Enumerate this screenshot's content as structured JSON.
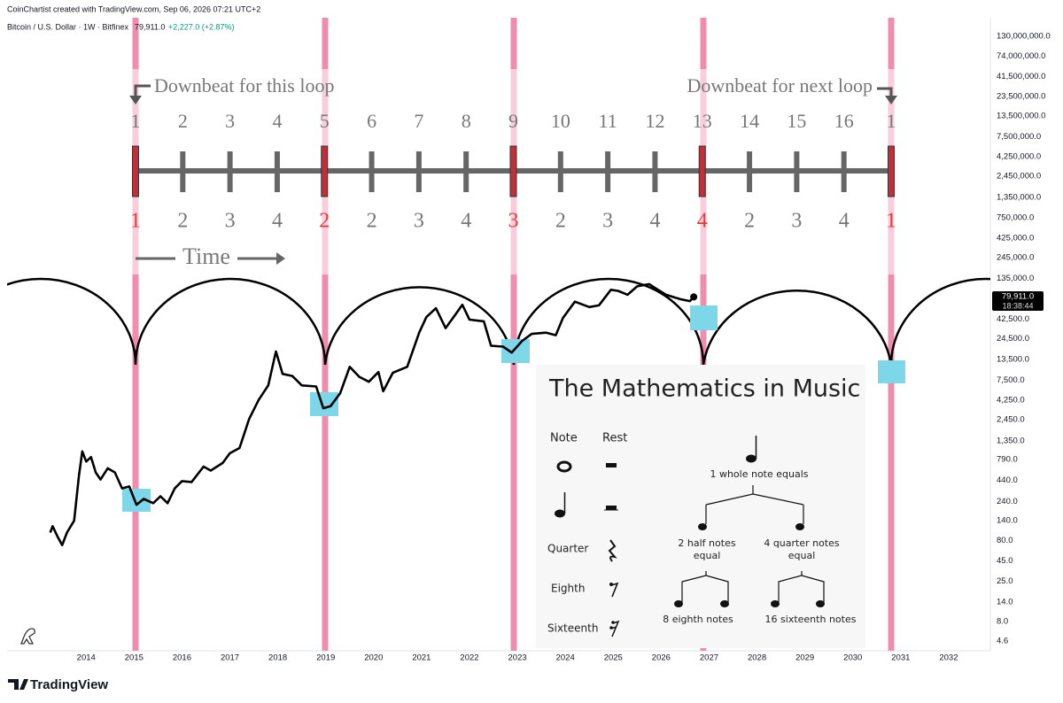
{
  "header": {
    "created": "CoinChartist created with TradingView.com, Sep 06, 2026 07:21 UTC+2",
    "symbol": "Bitcoin / U.S. Dollar · 1W · Bitfinex",
    "last": "79,911.0",
    "change": "+2,227.0 (+2.87%)"
  },
  "price_tag": {
    "price": "79,911.0",
    "countdown": "18:38:44"
  },
  "footer": {
    "brand": "TradingView"
  },
  "diagram": {
    "downbeat_this": "Downbeat for this loop",
    "downbeat_next": "Downbeat for next loop",
    "time": "Time",
    "beats": [
      "1",
      "2",
      "3",
      "4",
      "5",
      "6",
      "7",
      "8",
      "9",
      "10",
      "11",
      "12",
      "13",
      "14",
      "15",
      "16",
      "1"
    ],
    "counts": [
      "1",
      "2",
      "3",
      "4",
      "2",
      "2",
      "3",
      "4",
      "3",
      "2",
      "3",
      "4",
      "4",
      "2",
      "3",
      "4",
      "1"
    ]
  },
  "music": {
    "title": "The Mathematics in Music",
    "note_header": "Note",
    "rest_header": "Rest",
    "rows": [
      "Quarter",
      "Eighth",
      "Sixteenth"
    ],
    "whole": "1 whole note equals",
    "half": "2 half notes",
    "half_equal": "equal",
    "quarter": "4 quarter notes",
    "quarter_equal": "equal",
    "eighth": "8 eighth notes",
    "sixteenth": "16 sixteenth notes"
  },
  "chart_data": {
    "type": "line",
    "log_scale": true,
    "grid": false,
    "color": "#000000",
    "x": [
      2013.25,
      2013.3,
      2013.4,
      2013.5,
      2013.6,
      2013.75,
      2013.85,
      2013.92,
      2014.0,
      2014.1,
      2014.2,
      2014.3,
      2014.45,
      2014.6,
      2014.75,
      2014.9,
      2015.05,
      2015.2,
      2015.4,
      2015.55,
      2015.7,
      2015.85,
      2016.0,
      2016.2,
      2016.45,
      2016.6,
      2016.85,
      2017.0,
      2017.2,
      2017.4,
      2017.6,
      2017.8,
      2017.96,
      2018.1,
      2018.3,
      2018.5,
      2018.8,
      2018.95,
      2019.1,
      2019.3,
      2019.5,
      2019.7,
      2019.9,
      2020.1,
      2020.2,
      2020.4,
      2020.7,
      2020.95,
      2021.1,
      2021.3,
      2021.5,
      2021.7,
      2021.85,
      2022.0,
      2022.3,
      2022.45,
      2022.7,
      2022.88,
      2023.1,
      2023.3,
      2023.6,
      2023.8,
      2023.95,
      2024.2,
      2024.5,
      2024.7,
      2024.95,
      2025.1,
      2025.3,
      2025.5,
      2025.75,
      2025.85,
      2026.1,
      2026.4,
      2026.6,
      2026.68
    ],
    "values": [
      100,
      120,
      90,
      70,
      100,
      140,
      500,
      1000,
      750,
      850,
      550,
      450,
      620,
      550,
      350,
      370,
      220,
      260,
      230,
      280,
      230,
      350,
      430,
      420,
      650,
      580,
      720,
      950,
      1100,
      2500,
      4300,
      6500,
      17000,
      9000,
      8500,
      6500,
      6300,
      3400,
      3600,
      5200,
      11000,
      8300,
      7200,
      9500,
      5500,
      9300,
      11000,
      29000,
      45000,
      58000,
      33000,
      48000,
      64000,
      42000,
      40000,
      20000,
      19500,
      16500,
      23000,
      28000,
      29000,
      27000,
      44000,
      70000,
      60000,
      63000,
      98000,
      95000,
      85000,
      108000,
      115000,
      105000,
      85000,
      75000,
      71000,
      79911
    ],
    "xlim": [
      2012.35,
      2032.87
    ],
    "xticks": [
      2014,
      2015,
      2016,
      2017,
      2018,
      2019,
      2020,
      2021,
      2022,
      2023,
      2024,
      2025,
      2026,
      2027,
      2028,
      2029,
      2030,
      2031,
      2032
    ],
    "ylim": [
      3.5,
      220000000
    ],
    "yticks": [
      {
        "value": 130000000,
        "label": "130,000,000.0"
      },
      {
        "value": 74000000,
        "label": "74,000,000.0"
      },
      {
        "value": 41500000,
        "label": "41,500,000.0"
      },
      {
        "value": 23500000,
        "label": "23,500,000.0"
      },
      {
        "value": 13500000,
        "label": "13,500,000.0"
      },
      {
        "value": 7500000,
        "label": "7,500,000.0"
      },
      {
        "value": 4250000,
        "label": "4,250,000.0"
      },
      {
        "value": 2450000,
        "label": "2,450,000.0"
      },
      {
        "value": 1350000,
        "label": "1,350,000.0"
      },
      {
        "value": 750000,
        "label": "750,000.0"
      },
      {
        "value": 425000,
        "label": "425,000.0"
      },
      {
        "value": 245000,
        "label": "245,000.0"
      },
      {
        "value": 135000,
        "label": "135,000.0"
      },
      {
        "value": 42500,
        "label": "42,500.0"
      },
      {
        "value": 24500,
        "label": "24,500.0"
      },
      {
        "value": 13500,
        "label": "13,500.0"
      },
      {
        "value": 7500,
        "label": "7,500.0"
      },
      {
        "value": 4250,
        "label": "4,250.0"
      },
      {
        "value": 2450,
        "label": "2,450.0"
      },
      {
        "value": 1350,
        "label": "1,350.0"
      },
      {
        "value": 790,
        "label": "790.0"
      },
      {
        "value": 440,
        "label": "440.0"
      },
      {
        "value": 240,
        "label": "240.0"
      },
      {
        "value": 140,
        "label": "140.0"
      },
      {
        "value": 80,
        "label": "80.0"
      },
      {
        "value": 45,
        "label": "45.0"
      },
      {
        "value": 25,
        "label": "25.0"
      },
      {
        "value": 14,
        "label": "14.0"
      },
      {
        "value": 8,
        "label": "8.0"
      },
      {
        "value": 4.6,
        "label": "4.6"
      }
    ]
  }
}
